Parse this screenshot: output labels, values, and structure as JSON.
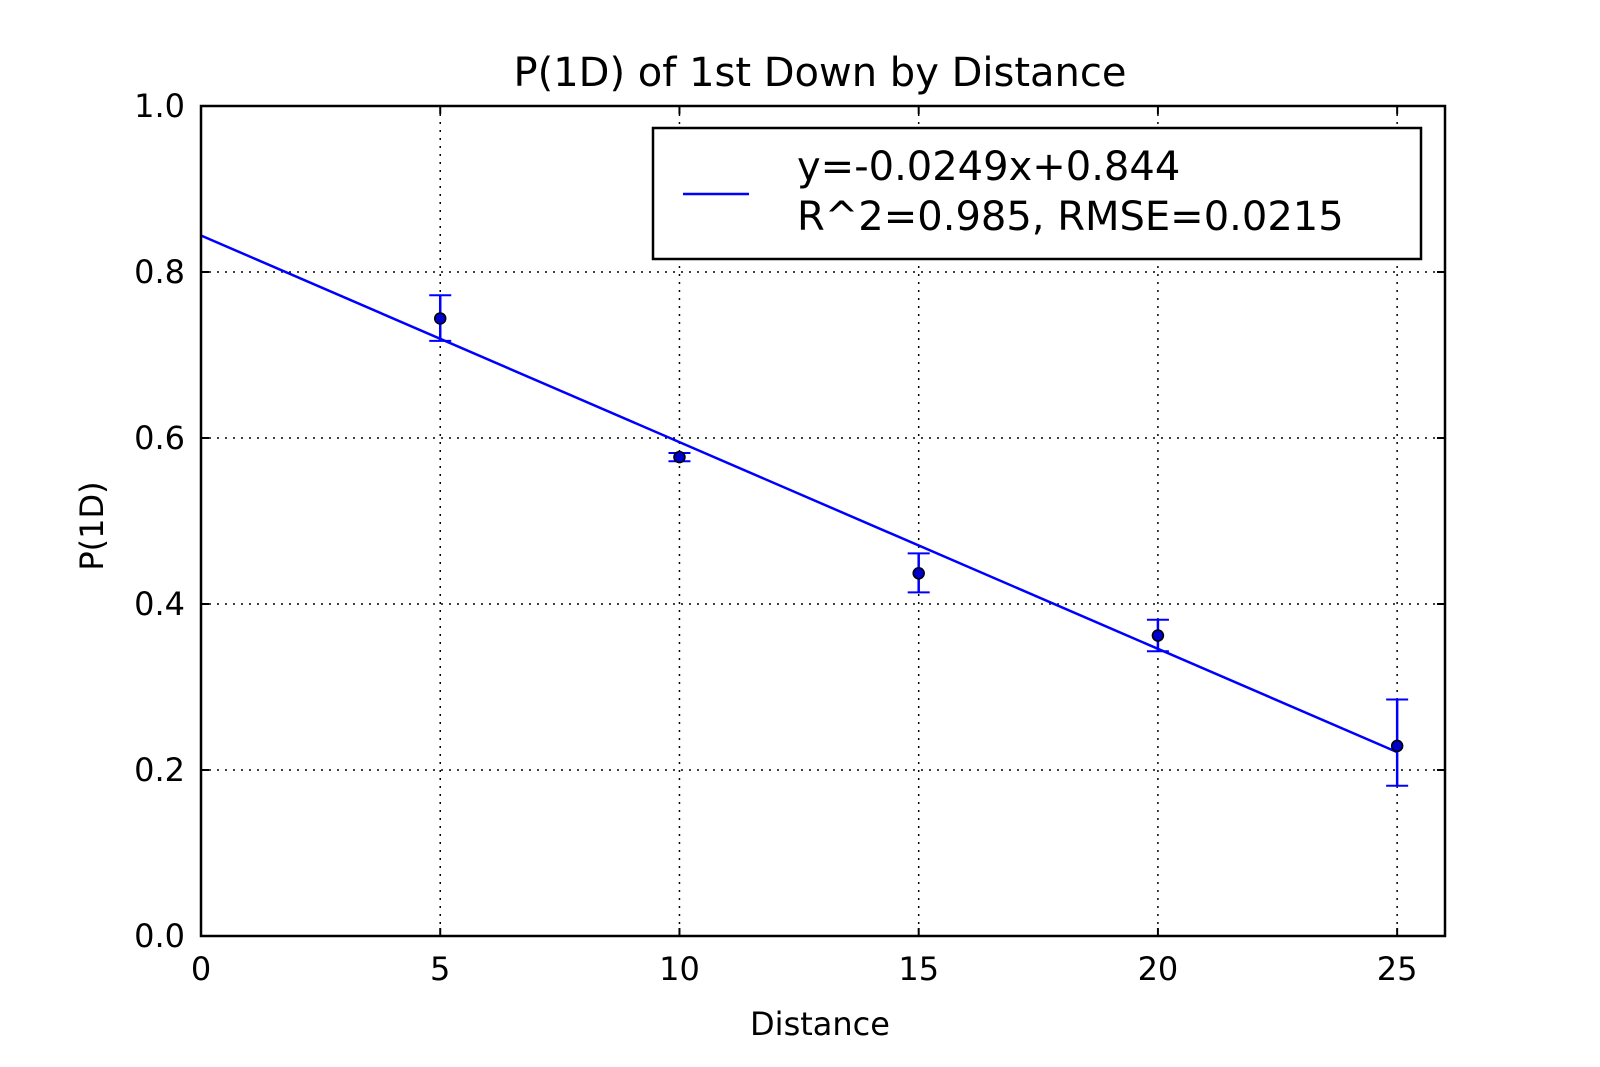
{
  "chart_data": {
    "type": "scatter",
    "title": "P(1D) of 1st Down by Distance",
    "xlabel": "Distance",
    "ylabel": "P(1D)",
    "xlim": [
      0,
      26
    ],
    "ylim": [
      0.0,
      1.0
    ],
    "xticks": [
      0,
      5,
      10,
      15,
      20,
      25
    ],
    "xtick_labels": [
      "0",
      "5",
      "10",
      "15",
      "20",
      "25"
    ],
    "yticks": [
      0.0,
      0.2,
      0.4,
      0.6,
      0.8,
      1.0
    ],
    "ytick_labels": [
      "0.0",
      "0.2",
      "0.4",
      "0.6",
      "0.8",
      "1.0"
    ],
    "grid": true,
    "legend_position": "top-right",
    "legend_lines": [
      "y=-0.0249x+0.844",
      "R^2=0.985, RMSE=0.0215"
    ],
    "points": [
      {
        "x": 5,
        "y": 0.744,
        "err_low": 0.717,
        "err_high": 0.772
      },
      {
        "x": 10,
        "y": 0.577,
        "err_low": 0.572,
        "err_high": 0.582
      },
      {
        "x": 15,
        "y": 0.437,
        "err_low": 0.414,
        "err_high": 0.461
      },
      {
        "x": 20,
        "y": 0.362,
        "err_low": 0.343,
        "err_high": 0.381
      },
      {
        "x": 25,
        "y": 0.229,
        "err_low": 0.181,
        "err_high": 0.285
      }
    ],
    "fit_line": {
      "slope": -0.0249,
      "intercept": 0.844,
      "x_range": [
        0,
        25
      ]
    },
    "colors": {
      "line": "#0000ff",
      "errorbar": "#0000ff",
      "marker_fill": "#0000cc",
      "marker_edge": "#000000",
      "axes": "#000000"
    }
  }
}
